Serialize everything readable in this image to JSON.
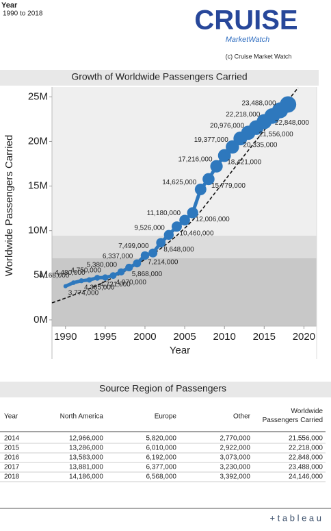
{
  "header": {
    "title": "Year",
    "subtitle": "1990 to 2018",
    "logo": "CRUISE",
    "logo_sub": "MarketWatch",
    "credit": "(c) Cruise Market Watch"
  },
  "chart_data": {
    "type": "line",
    "title": "Growth of Worldwide Passengers Carried",
    "x_label": "Year",
    "y_label": "Worldwide Passengers Carried",
    "x": [
      1990,
      1991,
      1992,
      1993,
      1994,
      1995,
      1996,
      1997,
      1998,
      1999,
      2000,
      2001,
      2002,
      2003,
      2004,
      2005,
      2006,
      2007,
      2008,
      2009,
      2010,
      2011,
      2012,
      2013,
      2014,
      2015,
      2016,
      2017,
      2018
    ],
    "values": [
      3774000,
      4168000,
      4385000,
      4480000,
      4721000,
      4750000,
      4970000,
      5380000,
      5868000,
      6337000,
      7214000,
      7499000,
      8648000,
      9526000,
      10460000,
      11180000,
      12006000,
      14625000,
      15779000,
      17216000,
      18421000,
      19377000,
      20335000,
      20976000,
      21556000,
      22218000,
      22848000,
      23488000,
      24146000
    ],
    "value_labels": [
      "3,774,000",
      "4,168,000",
      "4,385,000",
      "4,480,000",
      "4,721,000",
      "4,750,000",
      "4,970,000",
      "5,380,000",
      "5,868,000",
      "6,337,000",
      "7,214,000",
      "7,499,000",
      "8,648,000",
      "9,526,000",
      "10,460,000",
      "11,180,000",
      "12,006,000",
      "14,625,000",
      "15,779,000",
      "17,216,000",
      "18,421,000",
      "19,377,000",
      "20,335,000",
      "20,976,000",
      "21,556,000",
      "22,218,000",
      "22,848,000",
      "23,488,000",
      null
    ],
    "color": "#2e78bd",
    "xlim": [
      1988.3,
      2021.6
    ],
    "xticks": [
      1990,
      1995,
      2000,
      2005,
      2010,
      2015,
      2020
    ],
    "ylim": [
      -700000,
      26100000
    ],
    "yticks": [
      {
        "value": 0,
        "label": "0M"
      },
      {
        "value": 5000000,
        "label": "5M"
      },
      {
        "value": 10000000,
        "label": "10M"
      },
      {
        "value": 15000000,
        "label": "15M"
      },
      {
        "value": 20000000,
        "label": "20M"
      },
      {
        "value": 25000000,
        "label": "25M"
      }
    ]
  },
  "table": {
    "title": "Source Region of Passengers",
    "columns": [
      "Year",
      "North America",
      "Europe",
      "Other",
      "Worldwide Passengers Carried"
    ],
    "rows": [
      [
        "2014",
        "12,966,000",
        "5,820,000",
        "2,770,000",
        "21,556,000"
      ],
      [
        "2015",
        "13,286,000",
        "6,010,000",
        "2,922,000",
        "22,218,000"
      ],
      [
        "2016",
        "13,583,000",
        "6,192,000",
        "3,073,000",
        "22,848,000"
      ],
      [
        "2017",
        "13,881,000",
        "6,377,000",
        "3,230,000",
        "23,488,000"
      ],
      [
        "2018",
        "14,186,000",
        "6,568,000",
        "3,392,000",
        "24,146,000"
      ]
    ]
  },
  "footer": {
    "brand": "+ t a b l e a u"
  }
}
